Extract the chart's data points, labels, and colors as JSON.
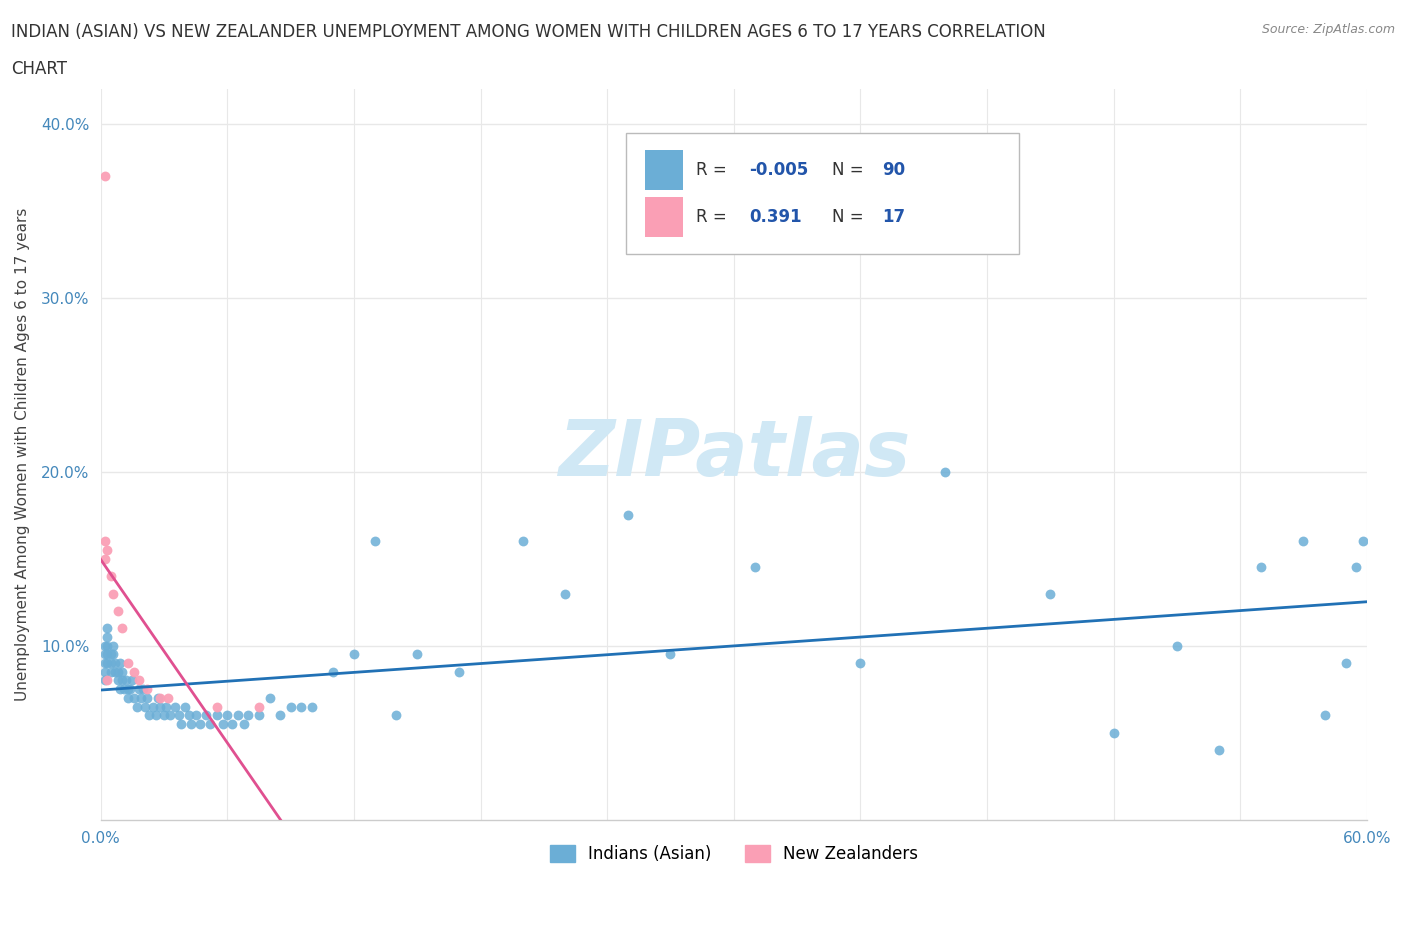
{
  "title_line1": "INDIAN (ASIAN) VS NEW ZEALANDER UNEMPLOYMENT AMONG WOMEN WITH CHILDREN AGES 6 TO 17 YEARS CORRELATION",
  "title_line2": "CHART",
  "source_text": "Source: ZipAtlas.com",
  "ylabel": "Unemployment Among Women with Children Ages 6 to 17 years",
  "xlim": [
    0.0,
    0.6
  ],
  "ylim": [
    0.0,
    0.42
  ],
  "xticks": [
    0.0,
    0.06,
    0.12,
    0.18,
    0.24,
    0.3,
    0.36,
    0.42,
    0.48,
    0.54,
    0.6
  ],
  "yticks": [
    0.0,
    0.1,
    0.2,
    0.3,
    0.4
  ],
  "ytick_labels": [
    "",
    "10.0%",
    "20.0%",
    "30.0%",
    "40.0%"
  ],
  "xtick_labels": [
    "0.0%",
    "",
    "",
    "",
    "",
    "",
    "",
    "",
    "",
    "",
    "60.0%"
  ],
  "blue_color": "#6baed6",
  "pink_color": "#fa9fb5",
  "trend_blue_color": "#2171b5",
  "trend_pink_color": "#e05090",
  "watermark_color": "#d0e8f5",
  "background_color": "#ffffff",
  "grid_color": "#e8e8e8",
  "legend_r_blue": "-0.005",
  "legend_n_blue": "90",
  "legend_r_pink": "0.391",
  "legend_n_pink": "17",
  "blue_scatter_x": [
    0.002,
    0.002,
    0.002,
    0.002,
    0.002,
    0.003,
    0.003,
    0.003,
    0.003,
    0.003,
    0.005,
    0.005,
    0.005,
    0.006,
    0.006,
    0.007,
    0.007,
    0.008,
    0.008,
    0.009,
    0.009,
    0.01,
    0.01,
    0.011,
    0.012,
    0.013,
    0.013,
    0.014,
    0.015,
    0.016,
    0.017,
    0.018,
    0.019,
    0.02,
    0.021,
    0.022,
    0.023,
    0.025,
    0.026,
    0.027,
    0.028,
    0.03,
    0.031,
    0.033,
    0.035,
    0.037,
    0.038,
    0.04,
    0.042,
    0.043,
    0.045,
    0.047,
    0.05,
    0.052,
    0.055,
    0.058,
    0.06,
    0.062,
    0.065,
    0.068,
    0.07,
    0.075,
    0.08,
    0.085,
    0.09,
    0.095,
    0.1,
    0.11,
    0.12,
    0.13,
    0.14,
    0.15,
    0.17,
    0.2,
    0.22,
    0.25,
    0.27,
    0.31,
    0.36,
    0.4,
    0.45,
    0.48,
    0.51,
    0.53,
    0.55,
    0.57,
    0.58,
    0.59,
    0.595,
    0.598
  ],
  "blue_scatter_y": [
    0.1,
    0.095,
    0.09,
    0.085,
    0.08,
    0.11,
    0.105,
    0.1,
    0.095,
    0.09,
    0.095,
    0.09,
    0.085,
    0.1,
    0.095,
    0.09,
    0.085,
    0.08,
    0.085,
    0.09,
    0.075,
    0.085,
    0.08,
    0.075,
    0.08,
    0.075,
    0.07,
    0.075,
    0.08,
    0.07,
    0.065,
    0.075,
    0.07,
    0.075,
    0.065,
    0.07,
    0.06,
    0.065,
    0.06,
    0.07,
    0.065,
    0.06,
    0.065,
    0.06,
    0.065,
    0.06,
    0.055,
    0.065,
    0.06,
    0.055,
    0.06,
    0.055,
    0.06,
    0.055,
    0.06,
    0.055,
    0.06,
    0.055,
    0.06,
    0.055,
    0.06,
    0.06,
    0.07,
    0.06,
    0.065,
    0.065,
    0.065,
    0.085,
    0.095,
    0.16,
    0.06,
    0.095,
    0.085,
    0.16,
    0.13,
    0.175,
    0.095,
    0.145,
    0.09,
    0.2,
    0.13,
    0.05,
    0.1,
    0.04,
    0.145,
    0.16,
    0.06,
    0.09,
    0.145,
    0.16
  ],
  "pink_scatter_x": [
    0.002,
    0.002,
    0.002,
    0.003,
    0.003,
    0.005,
    0.006,
    0.008,
    0.01,
    0.013,
    0.016,
    0.018,
    0.022,
    0.028,
    0.032,
    0.055,
    0.075
  ],
  "pink_scatter_y": [
    0.37,
    0.16,
    0.15,
    0.155,
    0.08,
    0.14,
    0.13,
    0.12,
    0.11,
    0.09,
    0.085,
    0.08,
    0.075,
    0.07,
    0.07,
    0.065,
    0.065
  ]
}
